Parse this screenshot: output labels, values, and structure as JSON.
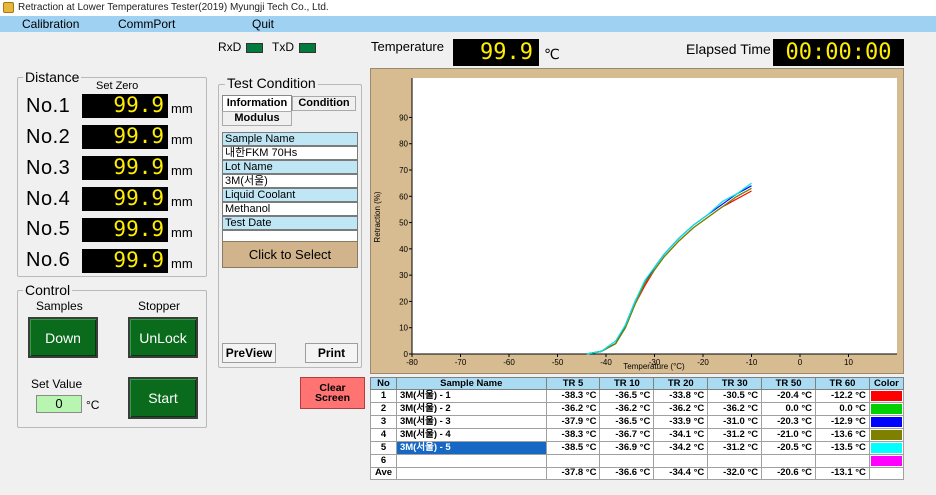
{
  "window": {
    "title": "Retraction at Lower Temperatures Tester(2019) Myungji Tech Co., Ltd."
  },
  "menu": {
    "items": [
      "Calibration",
      "CommPort",
      "Quit"
    ]
  },
  "indicators": {
    "rxd_label": "RxD",
    "txd_label": "TxD"
  },
  "temperature": {
    "label": "Temperature",
    "value": "99.9",
    "unit": "℃"
  },
  "elapsed": {
    "label": "Elapsed Time",
    "value": "00:00:00"
  },
  "distance": {
    "title": "Distance",
    "set_zero_label": "Set Zero",
    "unit": "mm",
    "rows": [
      {
        "label": "No.1",
        "value": "99.9"
      },
      {
        "label": "No.2",
        "value": "99.9"
      },
      {
        "label": "No.3",
        "value": "99.9"
      },
      {
        "label": "No.4",
        "value": "99.9"
      },
      {
        "label": "No.5",
        "value": "99.9"
      },
      {
        "label": "No.6",
        "value": "99.9"
      }
    ]
  },
  "control": {
    "title": "Control",
    "samples_label": "Samples",
    "stopper_label": "Stopper",
    "down_label": "Down",
    "unlock_label": "UnLock",
    "set_value_label": "Set Value",
    "set_value": "0",
    "set_value_unit": "°C",
    "start_label": "Start"
  },
  "test_condition": {
    "title": "Test Condition",
    "tabs": [
      "Information",
      "Condition",
      "Modulus"
    ],
    "fields": [
      {
        "label": "Sample Name",
        "value": "내한FKM 70Hs"
      },
      {
        "label": "Lot Name",
        "value": "3M(서울)"
      },
      {
        "label": "Liquid Coolant",
        "value": "Methanol"
      },
      {
        "label": "Test Date",
        "value": ""
      }
    ],
    "select_label": "Click to Select",
    "preview_label": "PreView",
    "print_label": "Print"
  },
  "clear_screen": {
    "line1": "Clear",
    "line2": "Screen"
  },
  "chart_data": {
    "type": "line",
    "title": "",
    "xlabel": "Temperature (°C)",
    "ylabel": "Retraction (%)",
    "xlim": [
      -80,
      20
    ],
    "ylim": [
      0,
      105
    ],
    "xticks": [
      -80,
      -70,
      -60,
      -50,
      -40,
      -30,
      -20,
      -10,
      0,
      10
    ],
    "yticks": [
      0,
      10,
      20,
      30,
      40,
      50,
      60,
      70,
      80,
      90
    ],
    "grid": false,
    "series": [
      {
        "color": "#ff0000",
        "x": [
          -44,
          -41,
          -38,
          -36,
          -34,
          -32,
          -30,
          -28,
          -25,
          -22,
          -19,
          -16,
          -13,
          -10
        ],
        "y": [
          0,
          1,
          4,
          10,
          19,
          26,
          32,
          37,
          43,
          48,
          52,
          56,
          59,
          62
        ]
      },
      {
        "color": "#00c000",
        "x": [
          -44,
          -41,
          -38,
          -36,
          -34,
          -32,
          -30,
          -28,
          -25,
          -22,
          -19,
          -16,
          -13,
          -10
        ],
        "y": [
          0,
          1,
          4,
          10,
          19,
          27,
          32,
          37,
          43,
          48,
          52,
          56,
          60,
          63
        ]
      },
      {
        "color": "#0000ff",
        "x": [
          -44,
          -41,
          -38,
          -36,
          -34,
          -32,
          -30,
          -28,
          -25,
          -22,
          -19,
          -16,
          -13,
          -10
        ],
        "y": [
          0,
          1,
          4,
          11,
          20,
          27,
          33,
          38,
          44,
          49,
          53,
          57,
          61,
          64
        ]
      },
      {
        "color": "#808000",
        "x": [
          -44,
          -41,
          -38,
          -36,
          -34,
          -32,
          -30,
          -28,
          -25,
          -22,
          -19,
          -16,
          -13,
          -10
        ],
        "y": [
          0,
          1,
          4,
          10,
          19,
          27,
          32,
          37,
          43,
          48,
          52,
          56,
          60,
          63
        ]
      },
      {
        "color": "#00e5e5",
        "x": [
          -44,
          -41,
          -38,
          -36,
          -34,
          -32,
          -30,
          -28,
          -25,
          -22,
          -19,
          -16,
          -13,
          -10
        ],
        "y": [
          0,
          1,
          5,
          11,
          20,
          28,
          33,
          38,
          44,
          49,
          53,
          58,
          61,
          65
        ]
      }
    ]
  },
  "results_table": {
    "headers": [
      "No",
      "Sample Name",
      "TR 5",
      "TR 10",
      "TR 20",
      "TR 30",
      "TR 50",
      "TR 60",
      "Color"
    ],
    "rows": [
      {
        "no": "1",
        "name": "3M(서울) - 1",
        "tr5": "-38.3 °C",
        "tr10": "-36.5 °C",
        "tr20": "-33.8 °C",
        "tr30": "-30.5 °C",
        "tr50": "-20.4 °C",
        "tr60": "-12.2 °C",
        "color": "#ff0000"
      },
      {
        "no": "2",
        "name": "3M(서울) - 2",
        "tr5": "-36.2 °C",
        "tr10": "-36.2 °C",
        "tr20": "-36.2 °C",
        "tr30": "-36.2 °C",
        "tr50": "0.0 °C",
        "tr60": "0.0 °C",
        "color": "#00d000"
      },
      {
        "no": "3",
        "name": "3M(서울) - 3",
        "tr5": "-37.9 °C",
        "tr10": "-36.5 °C",
        "tr20": "-33.9 °C",
        "tr30": "-31.0 °C",
        "tr50": "-20.3 °C",
        "tr60": "-12.9 °C",
        "color": "#0000ff"
      },
      {
        "no": "4",
        "name": "3M(서울) - 4",
        "tr5": "-38.3 °C",
        "tr10": "-36.7 °C",
        "tr20": "-34.1 °C",
        "tr30": "-31.2 °C",
        "tr50": "-21.0 °C",
        "tr60": "-13.6 °C",
        "color": "#808000"
      },
      {
        "no": "5",
        "name": "3M(서울) - 5",
        "tr5": "-38.5 °C",
        "tr10": "-36.9 °C",
        "tr20": "-34.2 °C",
        "tr30": "-31.2 °C",
        "tr50": "-20.5 °C",
        "tr60": "-13.5 °C",
        "color": "#00ffff"
      },
      {
        "no": "6",
        "name": "",
        "tr5": "",
        "tr10": "",
        "tr20": "",
        "tr30": "",
        "tr50": "",
        "tr60": "",
        "color": "#ff00ff"
      }
    ],
    "average": {
      "label": "Ave",
      "tr5": "-37.8 °C",
      "tr10": "-36.6 °C",
      "tr20": "-34.4 °C",
      "tr30": "-32.0 °C",
      "tr50": "-20.6 °C",
      "tr60": "-13.1 °C"
    },
    "selected_row": 5
  }
}
